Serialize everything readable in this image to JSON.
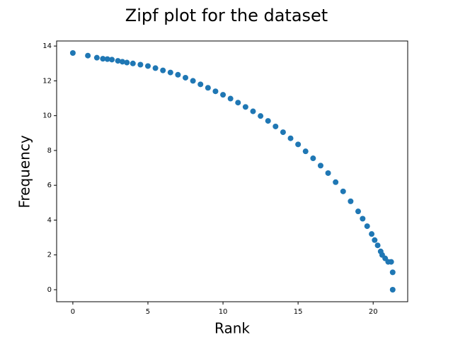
{
  "chart_data": {
    "type": "scatter",
    "title": "Zipf plot for the dataset",
    "x_label": "Rank",
    "y_label": "Frequency",
    "x": [
      0,
      1,
      1.6,
      2,
      2.3,
      2.6,
      3,
      3.3,
      3.6,
      4,
      4.5,
      5,
      5.5,
      6,
      6.5,
      7,
      7.5,
      8,
      8.5,
      9,
      9.5,
      10,
      10.5,
      11,
      11.5,
      12,
      12.5,
      13,
      13.5,
      14,
      14.5,
      15,
      15.5,
      16,
      16.5,
      17,
      17.5,
      18,
      18.5,
      19,
      19.3,
      19.6,
      19.9,
      20.1,
      20.3,
      20.5,
      20.6,
      20.8,
      21,
      21.2,
      21.3,
      21.3
    ],
    "values": [
      13.6,
      13.45,
      13.33,
      13.27,
      13.25,
      13.22,
      13.15,
      13.1,
      13.05,
      13.0,
      12.93,
      12.85,
      12.73,
      12.6,
      12.48,
      12.35,
      12.18,
      12.0,
      11.8,
      11.6,
      11.4,
      11.2,
      10.98,
      10.75,
      10.5,
      10.25,
      9.98,
      9.7,
      9.38,
      9.05,
      8.7,
      8.35,
      7.95,
      7.55,
      7.13,
      6.7,
      6.18,
      5.65,
      5.08,
      4.5,
      4.08,
      3.65,
      3.2,
      2.85,
      2.55,
      2.2,
      2.0,
      1.8,
      1.6,
      1.6,
      1.0,
      0
    ],
    "color": "#1f77b4",
    "xlim": [
      -1.08,
      22.3
    ],
    "ylim": [
      -0.69,
      14.29
    ],
    "xticks": [
      0,
      5,
      10,
      15,
      20
    ],
    "yticks": [
      0,
      2,
      4,
      6,
      8,
      10,
      12,
      14
    ]
  }
}
